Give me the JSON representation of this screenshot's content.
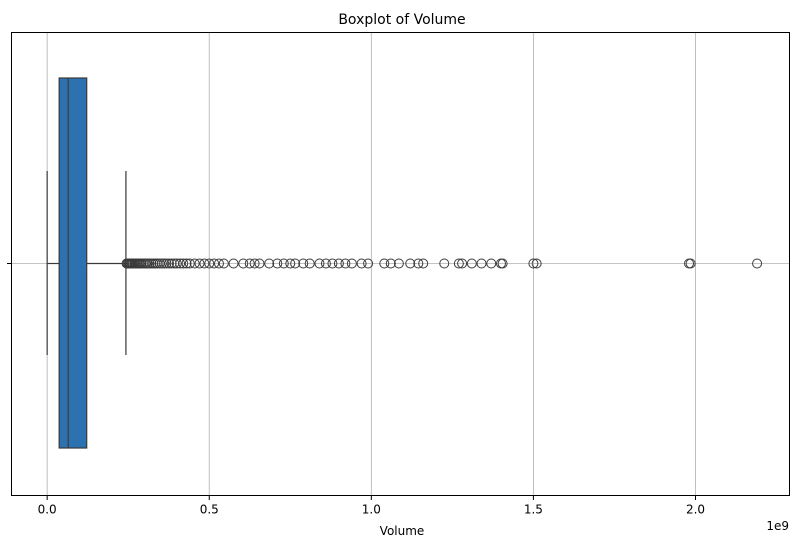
{
  "chart_data": {
    "type": "boxplot",
    "title": "Boxplot of Volume",
    "xlabel": "Volume",
    "ylabel": "",
    "x_offset_label": "1e9",
    "xlim": [
      -0.11,
      2.29
    ],
    "x_ticks": [
      0.0,
      0.5,
      1.0,
      1.5,
      2.0
    ],
    "x_tick_labels": [
      "0.0",
      "0.5",
      "1.0",
      "1.5",
      "2.0"
    ],
    "grid": true,
    "box": {
      "min": 0.0,
      "q1": 0.037,
      "median": 0.065,
      "q3": 0.122,
      "whisker_low": 0.0,
      "whisker_high": 0.243,
      "color": "#2d72b0",
      "line_color": "#3a3a3a"
    },
    "outliers": [
      0.245,
      0.248,
      0.251,
      0.254,
      0.257,
      0.26,
      0.263,
      0.266,
      0.27,
      0.274,
      0.278,
      0.282,
      0.286,
      0.29,
      0.295,
      0.3,
      0.305,
      0.31,
      0.316,
      0.322,
      0.328,
      0.334,
      0.34,
      0.347,
      0.354,
      0.361,
      0.368,
      0.376,
      0.384,
      0.392,
      0.4,
      0.41,
      0.42,
      0.43,
      0.44,
      0.455,
      0.47,
      0.485,
      0.5,
      0.515,
      0.53,
      0.545,
      0.575,
      0.605,
      0.625,
      0.64,
      0.655,
      0.685,
      0.71,
      0.73,
      0.75,
      0.765,
      0.79,
      0.81,
      0.84,
      0.86,
      0.88,
      0.9,
      0.92,
      0.94,
      0.97,
      0.99,
      1.04,
      1.06,
      1.085,
      1.12,
      1.145,
      1.16,
      1.225,
      1.27,
      1.28,
      1.31,
      1.34,
      1.37,
      1.4,
      1.405,
      1.5,
      1.51,
      1.98,
      1.985,
      2.19
    ]
  }
}
